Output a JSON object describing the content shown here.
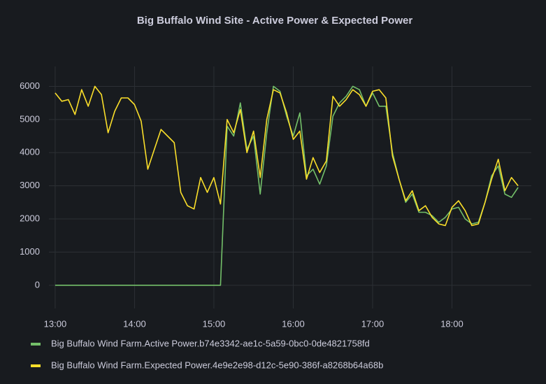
{
  "chart_data": {
    "type": "line",
    "title": "Big Buffalo Wind Site - Active Power & Expected Power",
    "x": [
      "13:00",
      "13:05",
      "13:10",
      "13:15",
      "13:20",
      "13:25",
      "13:30",
      "13:35",
      "13:40",
      "13:45",
      "13:50",
      "13:55",
      "14:00",
      "14:05",
      "14:10",
      "14:15",
      "14:20",
      "14:25",
      "14:30",
      "14:35",
      "14:40",
      "14:45",
      "14:50",
      "14:55",
      "15:00",
      "15:05",
      "15:10",
      "15:15",
      "15:20",
      "15:25",
      "15:30",
      "15:35",
      "15:40",
      "15:45",
      "15:50",
      "15:55",
      "16:00",
      "16:05",
      "16:10",
      "16:15",
      "16:20",
      "16:25",
      "16:30",
      "16:35",
      "16:40",
      "16:45",
      "16:50",
      "16:55",
      "17:00",
      "17:05",
      "17:10",
      "17:15",
      "17:20",
      "17:25",
      "17:30",
      "17:35",
      "17:40",
      "17:45",
      "17:50",
      "17:55",
      "18:00",
      "18:05",
      "18:10",
      "18:15",
      "18:20",
      "18:25",
      "18:30",
      "18:35",
      "18:40",
      "18:45",
      "18:50"
    ],
    "series": [
      {
        "name": "Big Buffalo Wind Farm.Active Power.b74e3342-ae1c-5a59-0bc0-0de4821758fd",
        "color": "#73bf69",
        "values": [
          0,
          0,
          0,
          0,
          0,
          0,
          0,
          0,
          0,
          0,
          0,
          0,
          0,
          0,
          0,
          0,
          0,
          0,
          0,
          0,
          0,
          0,
          0,
          0,
          0,
          0,
          4800,
          4500,
          5500,
          4100,
          4500,
          2750,
          4600,
          6000,
          5850,
          5100,
          4500,
          5200,
          3300,
          3500,
          3050,
          3600,
          5100,
          5500,
          5700,
          6000,
          5900,
          5400,
          5800,
          5400,
          5400,
          4000,
          3200,
          2500,
          2750,
          2200,
          2200,
          2100,
          1900,
          2050,
          2300,
          2350,
          2000,
          1850,
          1900,
          2500,
          3300,
          3600,
          2750,
          2650,
          2950
        ]
      },
      {
        "name": "Big Buffalo Wind Farm.Expected Power.4e9e2e98-d12c-5e90-386f-a8268b64a68b",
        "color": "#fade2a",
        "values": [
          5800,
          5550,
          5600,
          5150,
          5900,
          5400,
          6000,
          5750,
          4600,
          5250,
          5650,
          5650,
          5450,
          4950,
          3500,
          4100,
          4700,
          4500,
          4300,
          2800,
          2400,
          2300,
          3250,
          2800,
          3250,
          2450,
          5000,
          4600,
          5300,
          4000,
          4650,
          3250,
          5000,
          5900,
          5800,
          5200,
          4400,
          4650,
          3200,
          3850,
          3400,
          3750,
          5700,
          5400,
          5600,
          5900,
          5750,
          5400,
          5850,
          5900,
          5650,
          3900,
          3200,
          2550,
          2850,
          2250,
          2400,
          2050,
          1850,
          1800,
          2350,
          2550,
          2250,
          1800,
          1850,
          2500,
          3200,
          3800,
          2850,
          3250,
          3000
        ]
      }
    ],
    "xlim": [
      "12:50",
      "19:00"
    ],
    "xticks": [
      "13:00",
      "14:00",
      "15:00",
      "16:00",
      "17:00",
      "18:00"
    ],
    "ylim": [
      -700,
      6600
    ],
    "yticks": [
      0,
      1000,
      2000,
      3000,
      4000,
      5000,
      6000
    ],
    "grid": true
  }
}
